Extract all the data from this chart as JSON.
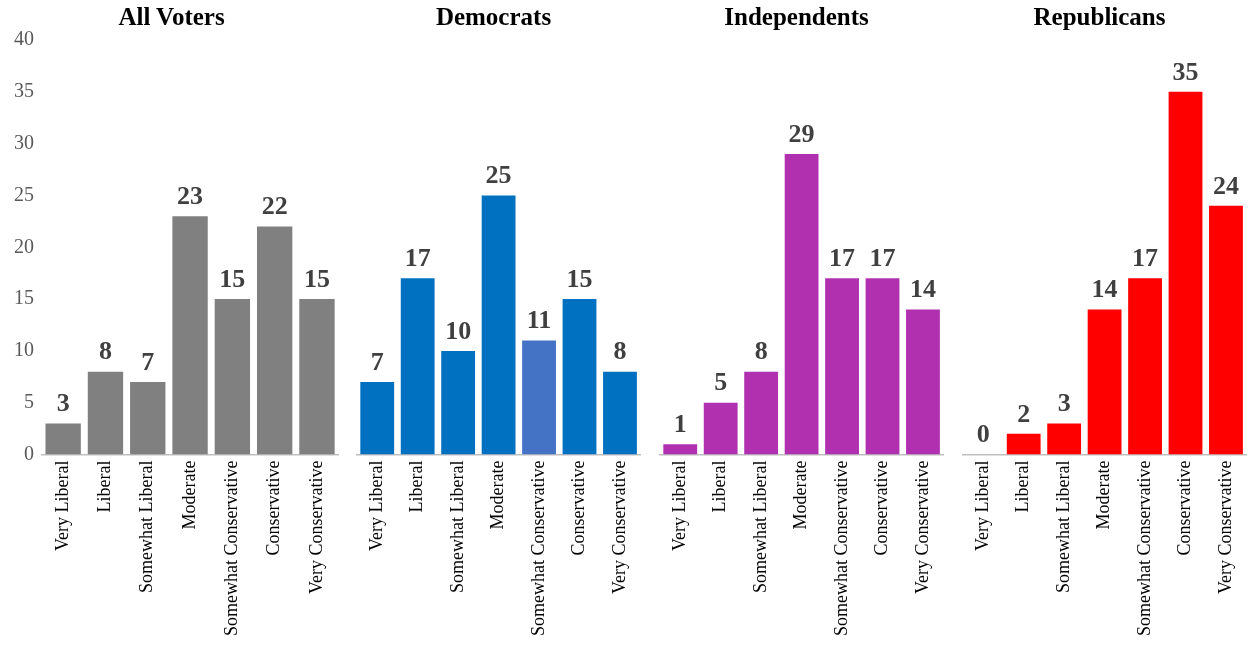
{
  "chart_data": [
    {
      "type": "bar",
      "title": "All Voters",
      "categories": [
        "Very Liberal",
        "Liberal",
        "Somewhat Liberal",
        "Moderate",
        "Somewhat Conservative",
        "Conservative",
        "Very Conservative"
      ],
      "values": [
        3,
        8,
        7,
        23,
        15,
        22,
        15
      ],
      "color": "#808080",
      "ylim": [
        0,
        40
      ],
      "yticks": [
        0,
        5,
        10,
        15,
        20,
        25,
        30,
        35,
        40
      ],
      "data_labels": true
    },
    {
      "type": "bar",
      "title": "Democrats",
      "categories": [
        "Very Liberal",
        "Liberal",
        "Somewhat Liberal",
        "Moderate",
        "Somewhat Conservative",
        "Conservative",
        "Very Conservative"
      ],
      "values": [
        7,
        17,
        10,
        25,
        11,
        15,
        8
      ],
      "colors": [
        "#0070c0",
        "#0070c0",
        "#0070c0",
        "#0070c0",
        "#4472c4",
        "#0070c0",
        "#0070c0"
      ],
      "ylim": [
        0,
        40
      ],
      "yticks": [
        0,
        5,
        10,
        15,
        20,
        25,
        30,
        35,
        40
      ],
      "tick_labels": "x",
      "data_labels": true
    },
    {
      "type": "bar",
      "title": "Independents",
      "categories": [
        "Very Liberal",
        "Liberal",
        "Somewhat Liberal",
        "Moderate",
        "Somewhat Conservative",
        "Conservative",
        "Very Conservative"
      ],
      "values": [
        1,
        5,
        8,
        29,
        17,
        17,
        14
      ],
      "color": "#b030b0",
      "ylim": [
        0,
        40
      ],
      "yticks": [
        0,
        5,
        10,
        15,
        20,
        25,
        30,
        35,
        40
      ],
      "tick_labels": "x",
      "data_labels": true
    },
    {
      "type": "bar",
      "title": "Republicans",
      "categories": [
        "Very Liberal",
        "Liberal",
        "Somewhat Liberal",
        "Moderate",
        "Somewhat Conservative",
        "Conservative",
        "Very Conservative"
      ],
      "values": [
        0,
        2,
        3,
        14,
        17,
        35,
        24
      ],
      "color": "#ff0000",
      "ylim": [
        0,
        40
      ],
      "yticks": [
        0,
        5,
        10,
        15,
        20,
        25,
        30,
        35,
        40
      ],
      "tick_labels": "x",
      "data_labels": true
    }
  ]
}
